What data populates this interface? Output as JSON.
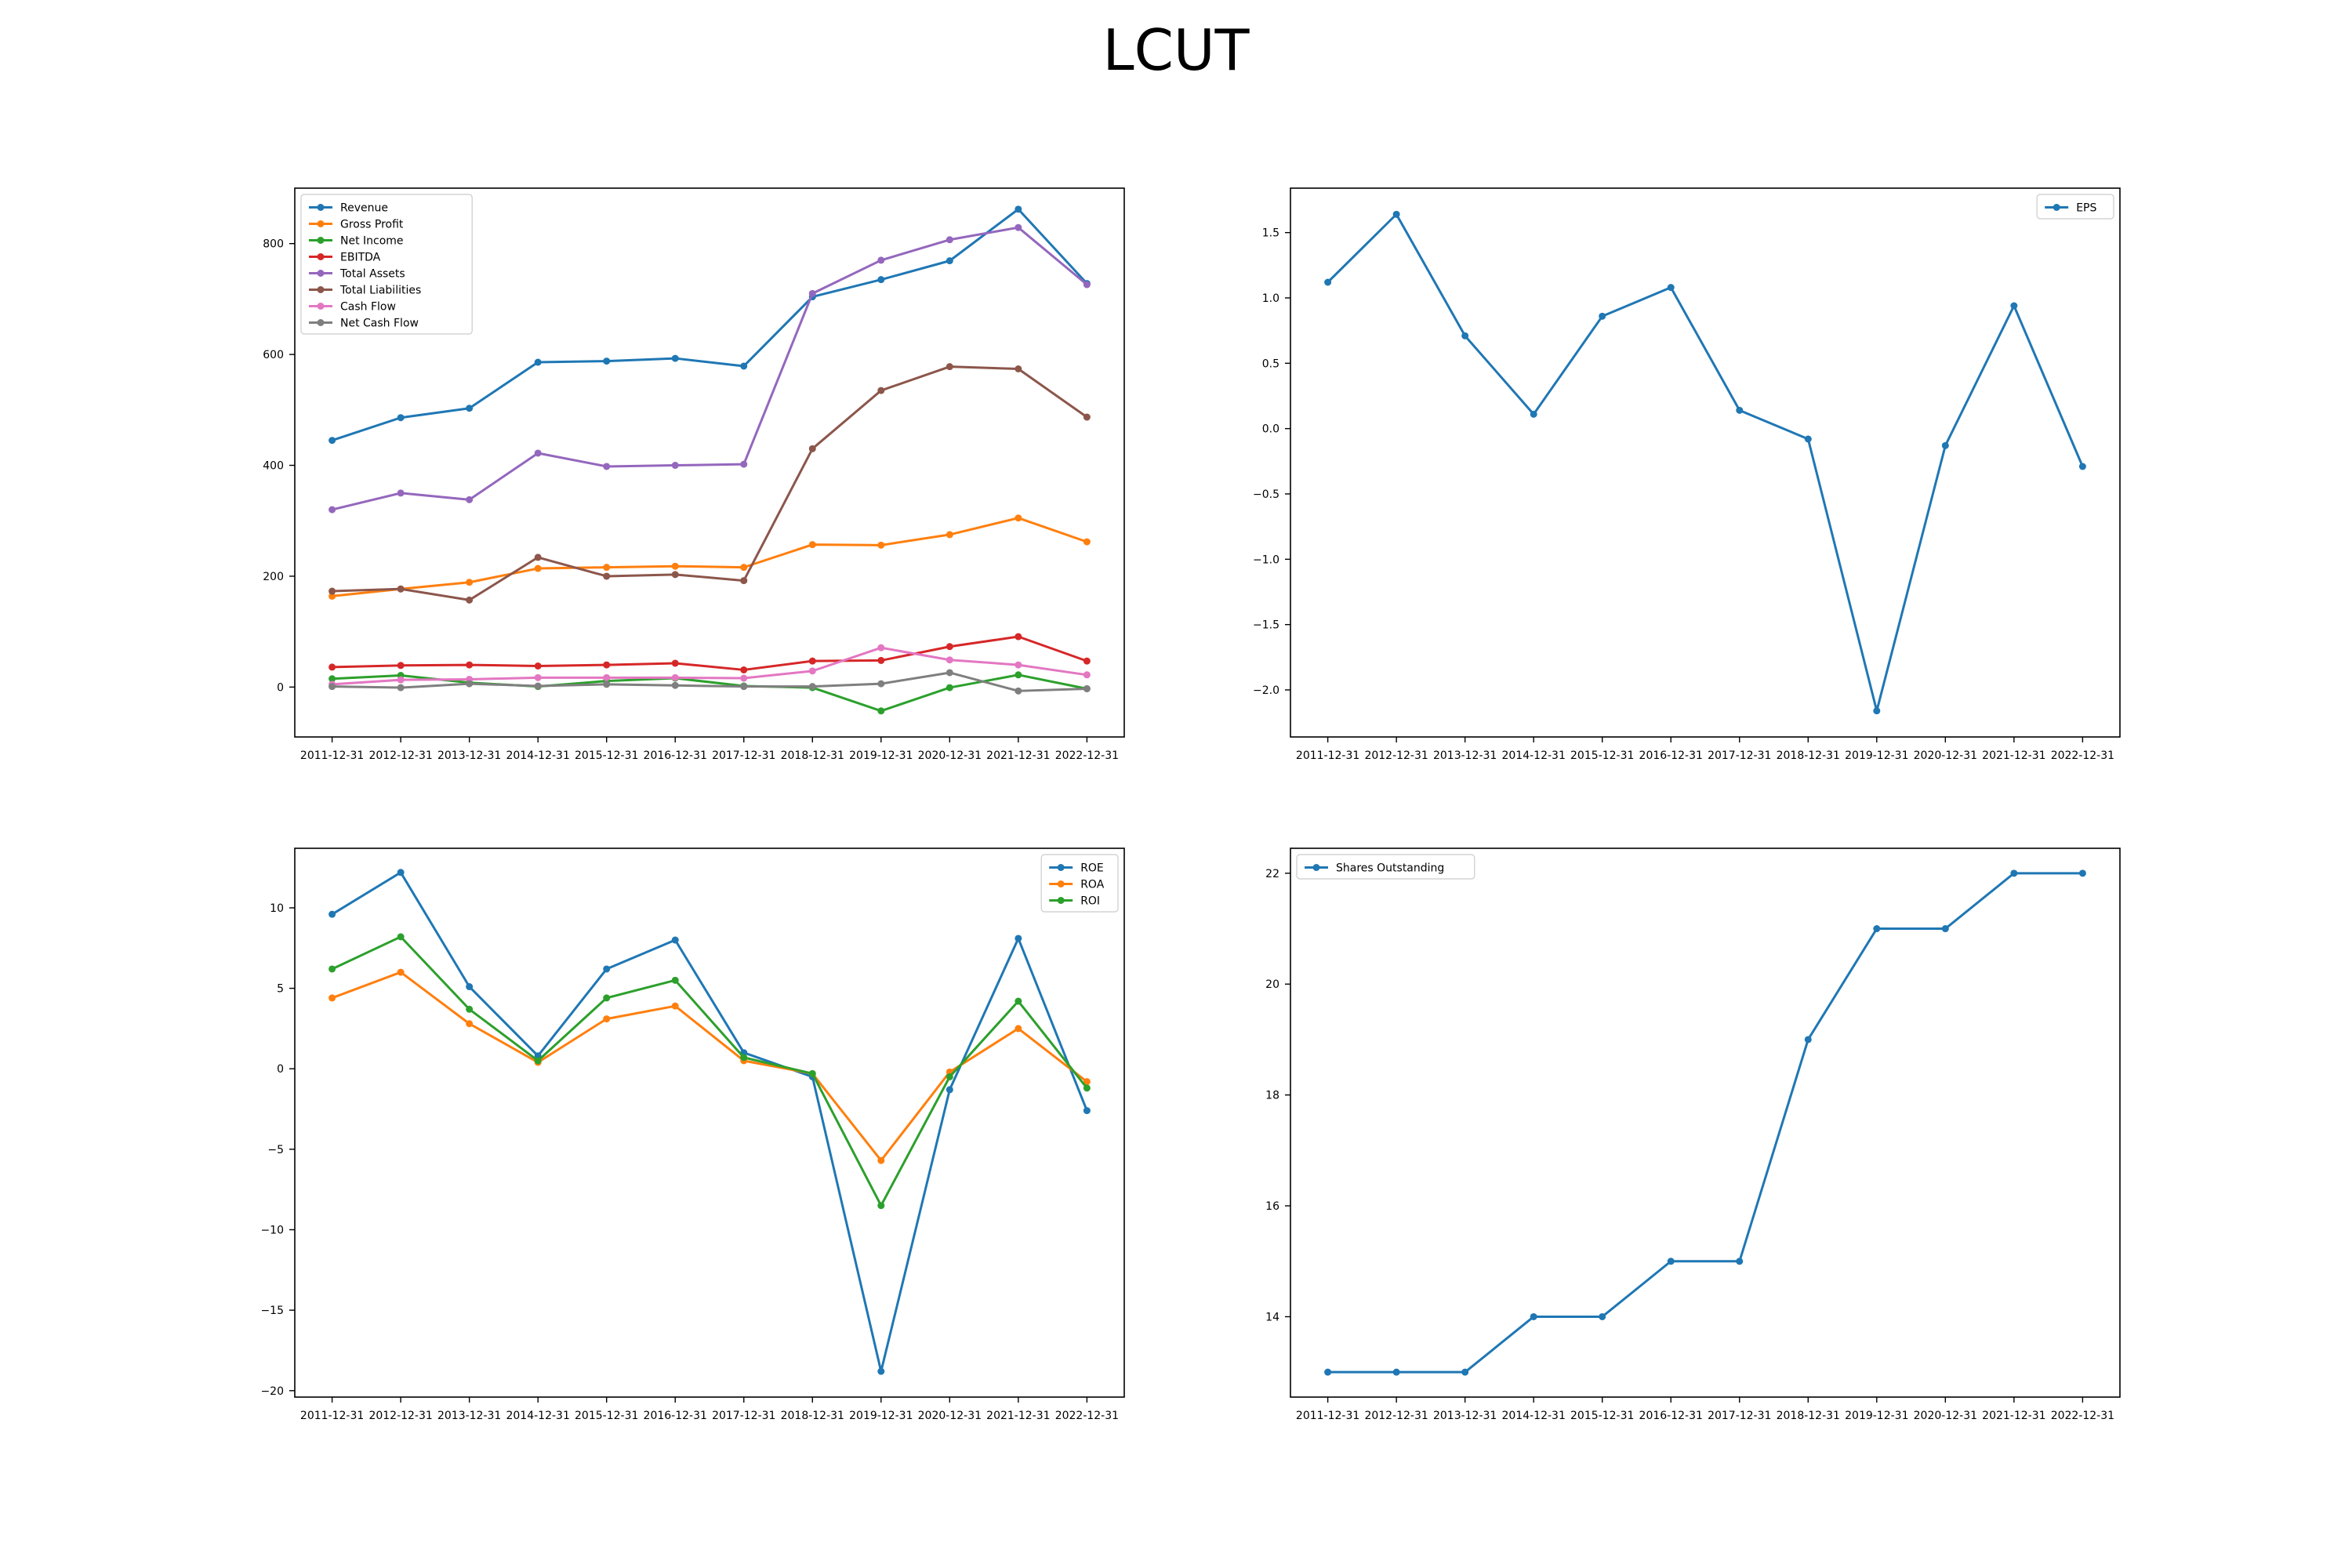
{
  "title": "LCUT",
  "chart_data": [
    {
      "type": "line",
      "x": [
        "2011-12-31",
        "2012-12-31",
        "2013-12-31",
        "2014-12-31",
        "2015-12-31",
        "2016-12-31",
        "2017-12-31",
        "2018-12-31",
        "2019-12-31",
        "2020-12-31",
        "2021-12-31",
        "2022-12-31"
      ],
      "ylim": [
        -90,
        900
      ],
      "yticks": [
        0,
        200,
        400,
        600,
        800
      ],
      "ytick_labels": [
        "0",
        "200",
        "400",
        "600",
        "800"
      ],
      "legend_position": "top-left",
      "grid": false,
      "series": [
        {
          "name": "Revenue",
          "color": "#1f77b4",
          "values": [
            445,
            486,
            503,
            586,
            588,
            593,
            579,
            704,
            735,
            769,
            862,
            728
          ]
        },
        {
          "name": "Gross Profit",
          "color": "#ff7f0e",
          "values": [
            164,
            177,
            189,
            214,
            216,
            218,
            216,
            257,
            256,
            275,
            305,
            262
          ]
        },
        {
          "name": "Net Income",
          "color": "#2ca02c",
          "values": [
            15,
            21,
            8,
            1,
            11,
            16,
            2,
            -1,
            -43,
            -1,
            22,
            -3
          ]
        },
        {
          "name": "EBITDA",
          "color": "#d62728",
          "values": [
            36,
            39,
            40,
            38,
            40,
            43,
            31,
            47,
            48,
            73,
            91,
            47
          ]
        },
        {
          "name": "Total Assets",
          "color": "#9467bd",
          "values": [
            320,
            350,
            338,
            422,
            398,
            400,
            402,
            710,
            770,
            807,
            829,
            726
          ]
        },
        {
          "name": "Total Liabilities",
          "color": "#8c564b",
          "values": [
            173,
            177,
            157,
            234,
            200,
            203,
            192,
            430,
            535,
            578,
            574,
            487
          ]
        },
        {
          "name": "Cash Flow",
          "color": "#e377c2",
          "values": [
            5,
            13,
            14,
            17,
            17,
            17,
            16,
            29,
            71,
            49,
            40,
            22
          ]
        },
        {
          "name": "Net Cash Flow",
          "color": "#7f7f7f",
          "values": [
            1,
            -1,
            6,
            2,
            5,
            3,
            1,
            1,
            6,
            26,
            -7,
            -3
          ]
        }
      ]
    },
    {
      "type": "line",
      "x": [
        "2011-12-31",
        "2012-12-31",
        "2013-12-31",
        "2014-12-31",
        "2015-12-31",
        "2016-12-31",
        "2017-12-31",
        "2018-12-31",
        "2019-12-31",
        "2020-12-31",
        "2021-12-31",
        "2022-12-31"
      ],
      "ylim": [
        -2.36,
        1.84
      ],
      "yticks": [
        -2.0,
        -1.5,
        -1.0,
        -0.5,
        0.0,
        0.5,
        1.0,
        1.5
      ],
      "ytick_labels": [
        "−2.0",
        "−1.5",
        "−1.0",
        "−0.5",
        "0.0",
        "0.5",
        "1.0",
        "1.5"
      ],
      "legend_position": "top-right",
      "grid": false,
      "series": [
        {
          "name": "EPS",
          "color": "#1f77b4",
          "values": [
            1.12,
            1.64,
            0.71,
            0.11,
            0.86,
            1.08,
            0.14,
            -0.08,
            -2.16,
            -0.13,
            0.94,
            -0.29
          ]
        }
      ]
    },
    {
      "type": "line",
      "x": [
        "2011-12-31",
        "2012-12-31",
        "2013-12-31",
        "2014-12-31",
        "2015-12-31",
        "2016-12-31",
        "2017-12-31",
        "2018-12-31",
        "2019-12-31",
        "2020-12-31",
        "2021-12-31",
        "2022-12-31"
      ],
      "ylim": [
        -20.4,
        13.7
      ],
      "yticks": [
        -20,
        -15,
        -10,
        -5,
        0,
        5,
        10
      ],
      "ytick_labels": [
        "−20",
        "−15",
        "−10",
        "−5",
        "0",
        "5",
        "10"
      ],
      "legend_position": "top-right",
      "grid": false,
      "series": [
        {
          "name": "ROE",
          "color": "#1f77b4",
          "values": [
            9.6,
            12.2,
            5.1,
            0.8,
            6.2,
            8.0,
            1.0,
            -0.5,
            -18.8,
            -1.3,
            8.1,
            -2.6
          ]
        },
        {
          "name": "ROA",
          "color": "#ff7f0e",
          "values": [
            4.4,
            6.0,
            2.8,
            0.4,
            3.1,
            3.9,
            0.5,
            -0.3,
            -5.7,
            -0.2,
            2.5,
            -0.8
          ]
        },
        {
          "name": "ROI",
          "color": "#2ca02c",
          "values": [
            6.2,
            8.2,
            3.7,
            0.5,
            4.4,
            5.5,
            0.7,
            -0.3,
            -8.5,
            -0.5,
            4.2,
            -1.2
          ]
        }
      ]
    },
    {
      "type": "line",
      "x": [
        "2011-12-31",
        "2012-12-31",
        "2013-12-31",
        "2014-12-31",
        "2015-12-31",
        "2016-12-31",
        "2017-12-31",
        "2018-12-31",
        "2019-12-31",
        "2020-12-31",
        "2021-12-31",
        "2022-12-31"
      ],
      "ylim": [
        12.55,
        22.45
      ],
      "yticks": [
        14,
        16,
        18,
        20,
        22
      ],
      "ytick_labels": [
        "14",
        "16",
        "18",
        "20",
        "22"
      ],
      "legend_position": "top-left",
      "grid": false,
      "series": [
        {
          "name": "Shares Outstanding",
          "color": "#1f77b4",
          "values": [
            13,
            13,
            13,
            14,
            14,
            15,
            15,
            19,
            21,
            21,
            22,
            22
          ]
        }
      ]
    }
  ]
}
